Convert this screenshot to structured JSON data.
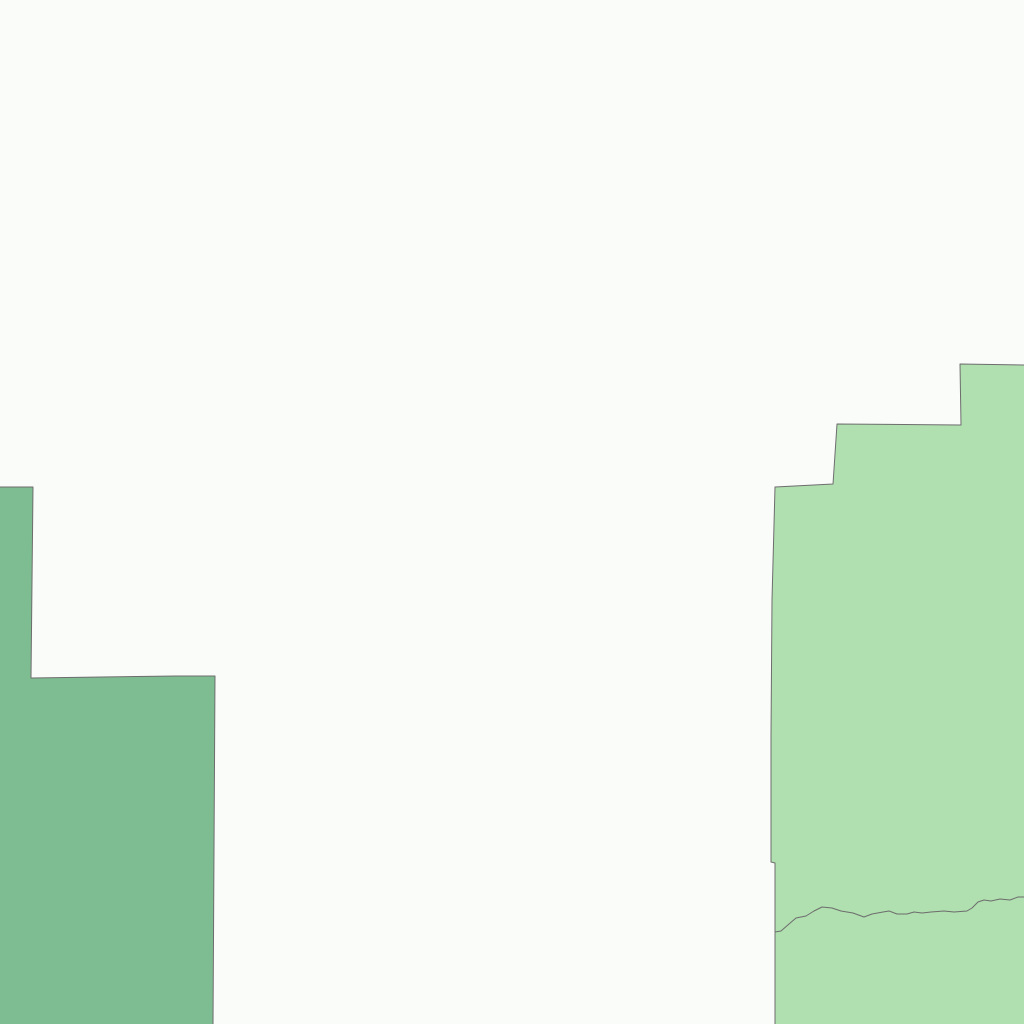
{
  "map": {
    "background_color": "#fafcfa",
    "border_color": "#6d6d6d",
    "regions": [
      {
        "id": "west-region",
        "fill_color": "#7ebd91"
      },
      {
        "id": "east-region",
        "fill_color": "#b0dfb0"
      }
    ]
  }
}
